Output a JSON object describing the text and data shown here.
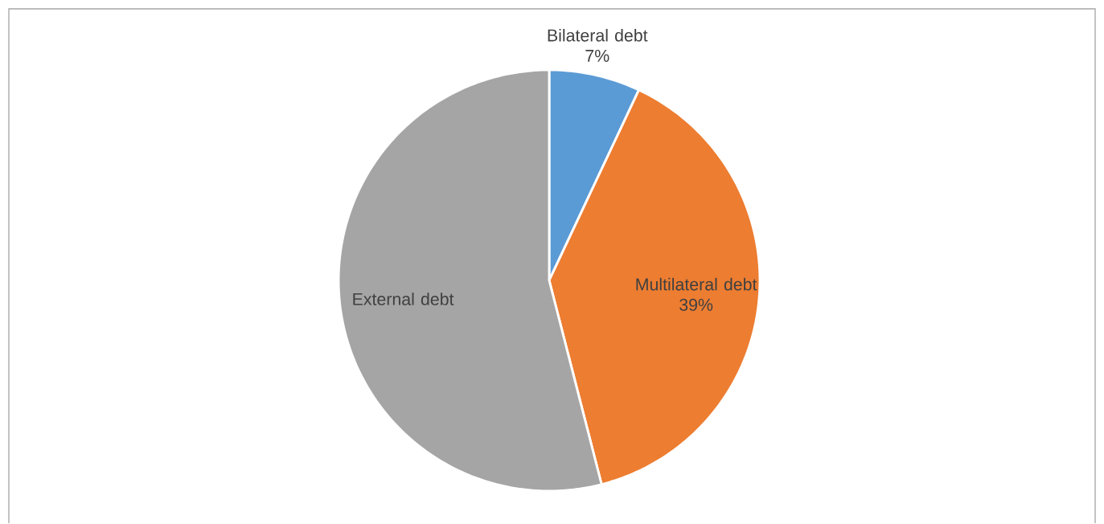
{
  "chart_data": {
    "type": "pie",
    "categories": [
      "Bilateral debt",
      "Multilateral debt",
      "External debt"
    ],
    "values": [
      7,
      39,
      54
    ],
    "value_labels": [
      "7%",
      "39%",
      null
    ],
    "colors": [
      "#5b9bd5",
      "#ed7d31",
      "#a5a5a5"
    ]
  }
}
